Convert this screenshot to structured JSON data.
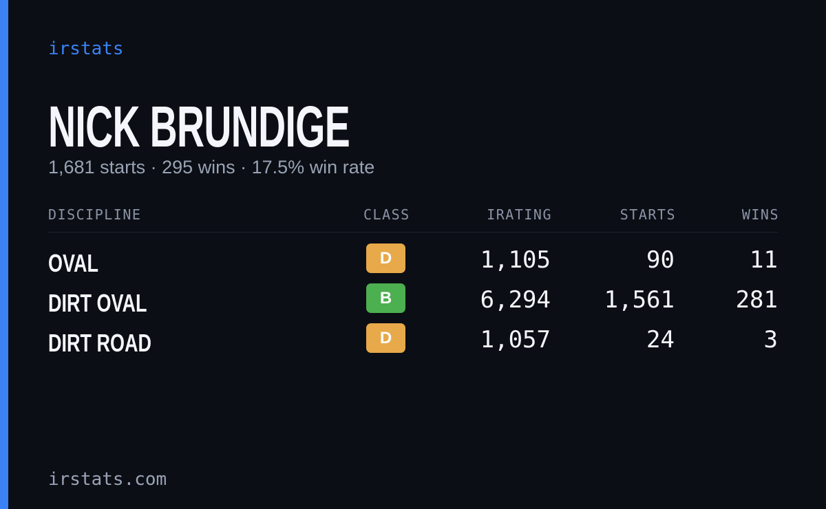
{
  "brand": "irstats",
  "driver": {
    "name": "NICK BRUNDIGE",
    "summary": "1,681 starts · 295 wins · 17.5% win rate"
  },
  "table": {
    "headers": [
      "DISCIPLINE",
      "CLASS",
      "IRATING",
      "STARTS",
      "WINS"
    ],
    "rows": [
      [
        "OVAL",
        "D",
        "1,105",
        "90",
        "11"
      ],
      [
        "DIRT OVAL",
        "B",
        "6,294",
        "1,561",
        "281"
      ],
      [
        "DIRT ROAD",
        "D",
        "1,057",
        "24",
        "3"
      ]
    ]
  },
  "footer": "irstats.com"
}
